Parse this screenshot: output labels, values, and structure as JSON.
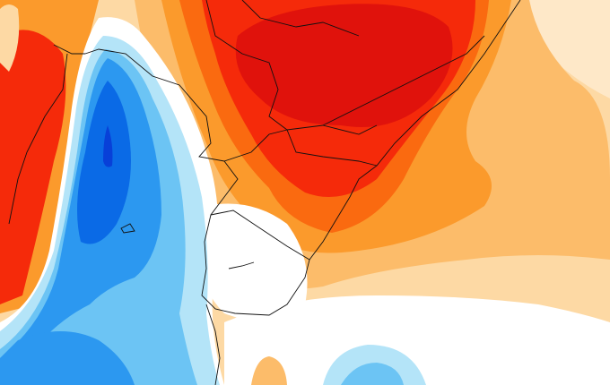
{
  "map": {
    "type": "temperature-anomaly",
    "colors": {
      "background_pale": "#fdd9a4",
      "very_pale": "#fee8c8",
      "light_orange": "#fcbc6a",
      "orange": "#fb9a2c",
      "dark_orange": "#fa6a10",
      "red": "#f52a0a",
      "dark_red": "#e0120c",
      "white": "#ffffff",
      "light_blue": "#b4e4f8",
      "sky_blue": "#6cc4f4",
      "blue": "#2c98f0",
      "deep_blue": "#0a6ae6",
      "navy": "#0840d8",
      "border": "#111111"
    }
  }
}
